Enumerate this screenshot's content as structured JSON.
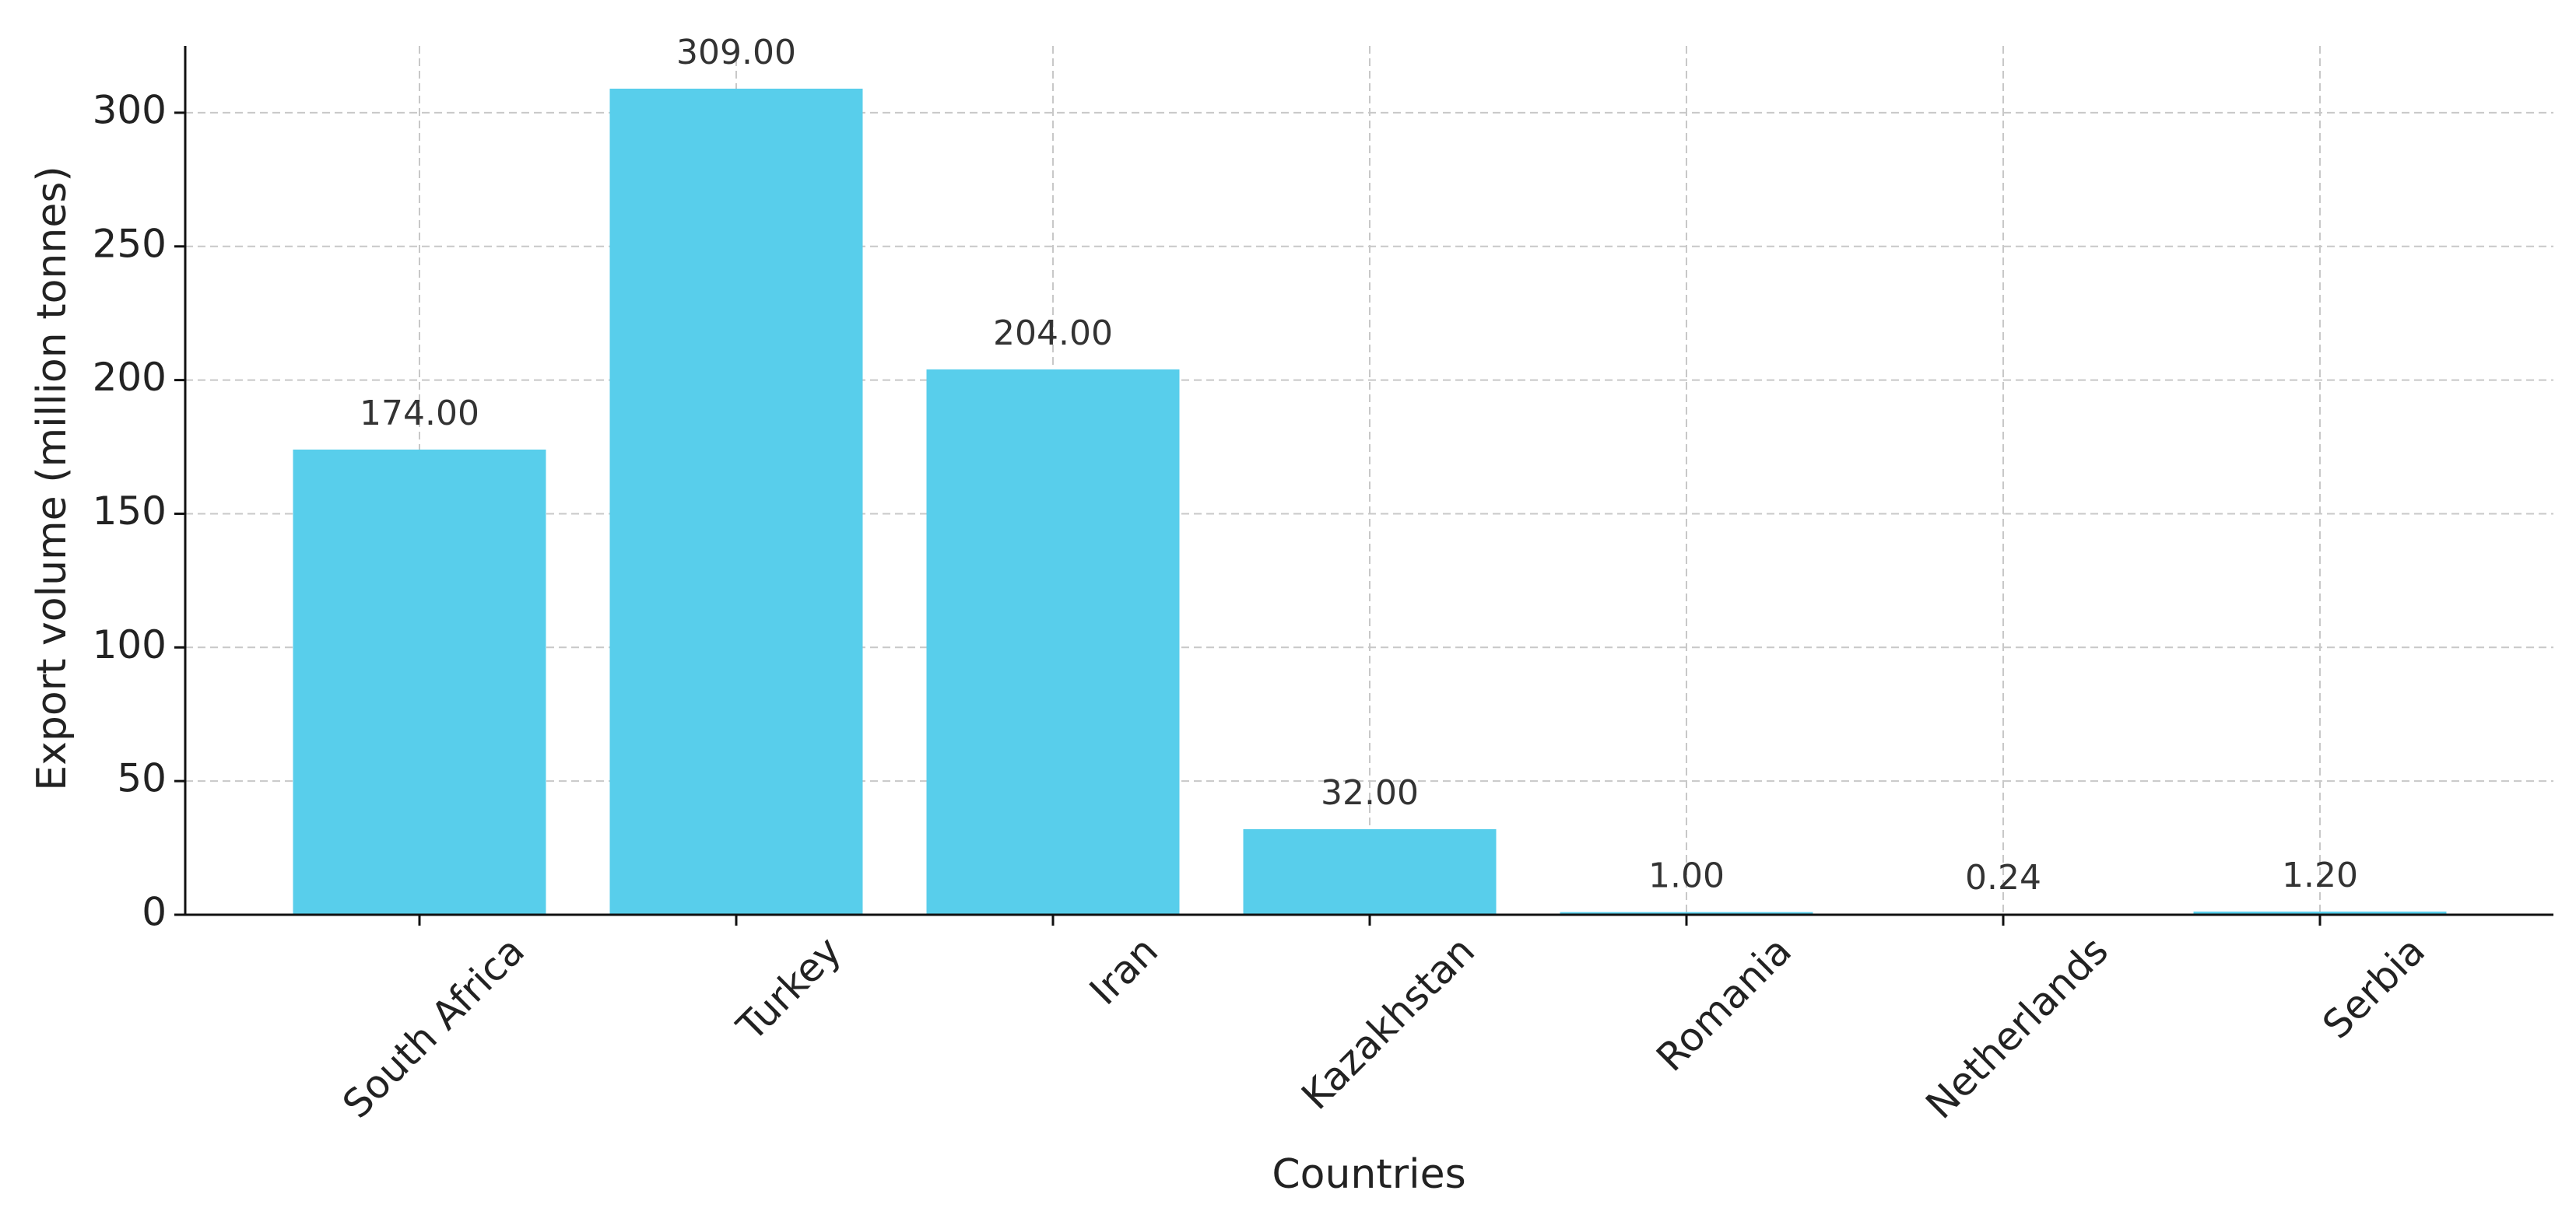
{
  "chart_data": {
    "type": "bar",
    "x_label": "Countries",
    "y_label": "Export volume (million tonnes)",
    "categories": [
      "South Africa",
      "Turkey",
      "Iran",
      "Kazakhstan",
      "Romania",
      "Netherlands",
      "Serbia"
    ],
    "values": [
      174,
      309,
      204,
      32,
      1,
      0.24,
      1.2
    ],
    "value_labels": [
      "174.00",
      "309.00",
      "204.00",
      "32.00",
      "1.00",
      "0.24",
      "1.20"
    ],
    "color": "#58ceeb",
    "ylim": [
      0,
      325
    ],
    "yticks": [
      0,
      50,
      100,
      150,
      200,
      250,
      300
    ],
    "grid": true
  }
}
